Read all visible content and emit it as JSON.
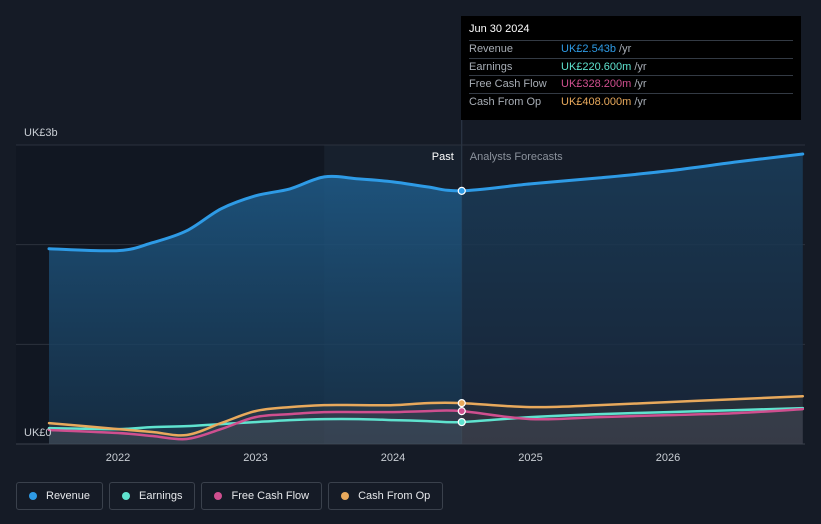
{
  "tooltip": {
    "date": "Jun 30 2024",
    "rows": [
      {
        "label": "Revenue",
        "value": "UK£2.543b",
        "unit": "/yr",
        "color": "#2e9be6"
      },
      {
        "label": "Earnings",
        "value": "UK£220.600m",
        "unit": "/yr",
        "color": "#5fe3cf"
      },
      {
        "label": "Free Cash Flow",
        "value": "UK£328.200m",
        "unit": "/yr",
        "color": "#cf4f8f"
      },
      {
        "label": "Cash From Op",
        "value": "UK£408.000m",
        "unit": "/yr",
        "color": "#e8a95c"
      }
    ]
  },
  "divider": {
    "past_label": "Past",
    "forecast_label": "Analysts Forecasts"
  },
  "legend": [
    {
      "label": "Revenue",
      "color": "#2e9be6"
    },
    {
      "label": "Earnings",
      "color": "#5fe3cf"
    },
    {
      "label": "Free Cash Flow",
      "color": "#cf4f8f"
    },
    {
      "label": "Cash From Op",
      "color": "#e8a95c"
    }
  ],
  "chart_data": {
    "type": "area",
    "x_tick_labels": [
      "2022",
      "2023",
      "2024",
      "2025",
      "2026"
    ],
    "y_tick_labels": [
      "UK£3b",
      "UK£0"
    ],
    "ylim": [
      0,
      3.0
    ],
    "y_unit": "billion GBP",
    "xlim": [
      2021.5,
      2026.98
    ],
    "highlight_start": 2023.5,
    "past_end": 2024.5,
    "series": [
      {
        "name": "Revenue",
        "color": "#2e9be6",
        "points": [
          [
            2021.75,
            1.96
          ],
          [
            2022.0,
            1.94
          ],
          [
            2022.25,
            2.02
          ],
          [
            2022.5,
            2.14
          ],
          [
            2022.75,
            2.36
          ],
          [
            2023.0,
            2.49
          ],
          [
            2023.25,
            2.56
          ],
          [
            2023.5,
            2.68
          ],
          [
            2023.75,
            2.66
          ],
          [
            2024.0,
            2.63
          ],
          [
            2024.25,
            2.58
          ],
          [
            2024.5,
            2.54
          ],
          [
            2025.0,
            2.61
          ],
          [
            2025.5,
            2.67
          ],
          [
            2026.0,
            2.74
          ],
          [
            2026.5,
            2.83
          ],
          [
            2026.98,
            2.91
          ]
        ]
      },
      {
        "name": "Earnings",
        "color": "#5fe3cf",
        "points": [
          [
            2021.75,
            0.16
          ],
          [
            2022.0,
            0.15
          ],
          [
            2022.25,
            0.17
          ],
          [
            2022.5,
            0.18
          ],
          [
            2022.75,
            0.2
          ],
          [
            2023.0,
            0.22
          ],
          [
            2023.25,
            0.24
          ],
          [
            2023.5,
            0.25
          ],
          [
            2023.75,
            0.25
          ],
          [
            2024.0,
            0.24
          ],
          [
            2024.25,
            0.23
          ],
          [
            2024.5,
            0.22
          ],
          [
            2025.0,
            0.27
          ],
          [
            2025.5,
            0.3
          ],
          [
            2026.0,
            0.32
          ],
          [
            2026.5,
            0.34
          ],
          [
            2026.98,
            0.36
          ]
        ]
      },
      {
        "name": "Free Cash Flow",
        "color": "#cf4f8f",
        "points": [
          [
            2021.75,
            0.14
          ],
          [
            2022.0,
            0.11
          ],
          [
            2022.25,
            0.08
          ],
          [
            2022.5,
            0.05
          ],
          [
            2022.75,
            0.15
          ],
          [
            2023.0,
            0.27
          ],
          [
            2023.25,
            0.3
          ],
          [
            2023.5,
            0.32
          ],
          [
            2023.75,
            0.32
          ],
          [
            2024.0,
            0.32
          ],
          [
            2024.25,
            0.33
          ],
          [
            2024.5,
            0.33
          ],
          [
            2025.0,
            0.25
          ],
          [
            2025.5,
            0.27
          ],
          [
            2026.0,
            0.29
          ],
          [
            2026.5,
            0.31
          ],
          [
            2026.98,
            0.35
          ]
        ]
      },
      {
        "name": "Cash From Op",
        "color": "#e8a95c",
        "points": [
          [
            2021.75,
            0.21
          ],
          [
            2022.0,
            0.15
          ],
          [
            2022.25,
            0.12
          ],
          [
            2022.5,
            0.09
          ],
          [
            2022.75,
            0.21
          ],
          [
            2023.0,
            0.33
          ],
          [
            2023.25,
            0.37
          ],
          [
            2023.5,
            0.39
          ],
          [
            2023.75,
            0.39
          ],
          [
            2024.0,
            0.39
          ],
          [
            2024.25,
            0.41
          ],
          [
            2024.5,
            0.41
          ],
          [
            2025.0,
            0.37
          ],
          [
            2025.5,
            0.39
          ],
          [
            2026.0,
            0.42
          ],
          [
            2026.5,
            0.45
          ],
          [
            2026.98,
            0.48
          ]
        ]
      }
    ]
  }
}
